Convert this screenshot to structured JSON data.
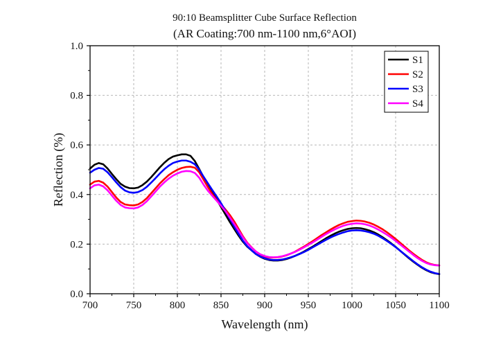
{
  "chart_data": {
    "type": "line",
    "title": "90:10 Beamsplitter Cube Surface Reflection",
    "subtitle": "(AR Coating:700 nm-1100 nm,6°AOI)",
    "xlabel": "Wavelength (nm)",
    "ylabel": "Reflection (%)",
    "xlim": [
      700,
      1100
    ],
    "ylim": [
      0.0,
      1.0
    ],
    "xticks": [
      "700",
      "750",
      "800",
      "850",
      "900",
      "950",
      "1000",
      "1050",
      "1100"
    ],
    "yticks": [
      "0.0",
      "0.2",
      "0.4",
      "0.6",
      "0.8",
      "1.0"
    ],
    "grid": true,
    "legend_position": "top-right",
    "series": [
      {
        "name": "S1",
        "color": "#000000",
        "x": [
          700,
          705,
          710,
          715,
          720,
          725,
          730,
          735,
          740,
          745,
          750,
          755,
          760,
          765,
          770,
          775,
          780,
          785,
          790,
          795,
          800,
          805,
          810,
          815,
          820,
          825,
          830,
          835,
          840,
          845,
          850,
          855,
          860,
          865,
          870,
          875,
          880,
          885,
          890,
          895,
          900,
          905,
          910,
          915,
          920,
          925,
          930,
          935,
          940,
          945,
          950,
          955,
          960,
          965,
          970,
          975,
          980,
          985,
          990,
          995,
          1000,
          1005,
          1010,
          1015,
          1020,
          1025,
          1030,
          1035,
          1040,
          1045,
          1050,
          1055,
          1060,
          1065,
          1070,
          1075,
          1080,
          1085,
          1090,
          1095,
          1100
        ],
        "values": [
          0.505,
          0.52,
          0.527,
          0.522,
          0.505,
          0.483,
          0.462,
          0.443,
          0.432,
          0.426,
          0.425,
          0.428,
          0.438,
          0.452,
          0.47,
          0.49,
          0.51,
          0.528,
          0.543,
          0.553,
          0.558,
          0.562,
          0.562,
          0.556,
          0.535,
          0.503,
          0.47,
          0.438,
          0.41,
          0.38,
          0.35,
          0.32,
          0.29,
          0.262,
          0.235,
          0.21,
          0.19,
          0.175,
          0.16,
          0.149,
          0.141,
          0.136,
          0.134,
          0.134,
          0.136,
          0.14,
          0.146,
          0.153,
          0.161,
          0.17,
          0.18,
          0.19,
          0.201,
          0.212,
          0.223,
          0.233,
          0.242,
          0.25,
          0.256,
          0.261,
          0.264,
          0.265,
          0.264,
          0.26,
          0.255,
          0.248,
          0.239,
          0.228,
          0.216,
          0.203,
          0.189,
          0.174,
          0.159,
          0.144,
          0.13,
          0.117,
          0.105,
          0.095,
          0.087,
          0.082,
          0.079
        ]
      },
      {
        "name": "S2",
        "color": "#ff0000",
        "x": [
          700,
          705,
          710,
          715,
          720,
          725,
          730,
          735,
          740,
          745,
          750,
          755,
          760,
          765,
          770,
          775,
          780,
          785,
          790,
          795,
          800,
          805,
          810,
          815,
          820,
          825,
          830,
          835,
          840,
          845,
          850,
          855,
          860,
          865,
          870,
          875,
          880,
          885,
          890,
          895,
          900,
          905,
          910,
          915,
          920,
          925,
          930,
          935,
          940,
          945,
          950,
          955,
          960,
          965,
          970,
          975,
          980,
          985,
          990,
          995,
          1000,
          1005,
          1010,
          1015,
          1020,
          1025,
          1030,
          1035,
          1040,
          1045,
          1050,
          1055,
          1060,
          1065,
          1070,
          1075,
          1080,
          1085,
          1090,
          1095,
          1100
        ],
        "values": [
          0.44,
          0.452,
          0.455,
          0.448,
          0.432,
          0.41,
          0.388,
          0.37,
          0.36,
          0.357,
          0.356,
          0.36,
          0.37,
          0.385,
          0.405,
          0.425,
          0.445,
          0.462,
          0.478,
          0.49,
          0.5,
          0.507,
          0.511,
          0.512,
          0.508,
          0.49,
          0.46,
          0.43,
          0.402,
          0.378,
          0.36,
          0.34,
          0.318,
          0.292,
          0.262,
          0.232,
          0.206,
          0.187,
          0.17,
          0.158,
          0.15,
          0.146,
          0.146,
          0.147,
          0.15,
          0.155,
          0.162,
          0.17,
          0.18,
          0.19,
          0.201,
          0.212,
          0.224,
          0.236,
          0.247,
          0.258,
          0.268,
          0.277,
          0.284,
          0.29,
          0.293,
          0.295,
          0.294,
          0.291,
          0.286,
          0.279,
          0.27,
          0.26,
          0.248,
          0.235,
          0.221,
          0.206,
          0.191,
          0.176,
          0.162,
          0.149,
          0.137,
          0.127,
          0.12,
          0.116,
          0.114
        ]
      },
      {
        "name": "S3",
        "color": "#0000ff",
        "x": [
          700,
          705,
          710,
          715,
          720,
          725,
          730,
          735,
          740,
          745,
          750,
          755,
          760,
          765,
          770,
          775,
          780,
          785,
          790,
          795,
          800,
          805,
          810,
          815,
          820,
          825,
          830,
          835,
          840,
          845,
          850,
          855,
          860,
          865,
          870,
          875,
          880,
          885,
          890,
          895,
          900,
          905,
          910,
          915,
          920,
          925,
          930,
          935,
          940,
          945,
          950,
          955,
          960,
          965,
          970,
          975,
          980,
          985,
          990,
          995,
          1000,
          1005,
          1010,
          1015,
          1020,
          1025,
          1030,
          1035,
          1040,
          1045,
          1050,
          1055,
          1060,
          1065,
          1070,
          1075,
          1080,
          1085,
          1090,
          1095,
          1100
        ],
        "values": [
          0.488,
          0.5,
          0.507,
          0.504,
          0.49,
          0.47,
          0.449,
          0.43,
          0.416,
          0.409,
          0.407,
          0.41,
          0.418,
          0.431,
          0.448,
          0.466,
          0.485,
          0.502,
          0.516,
          0.527,
          0.533,
          0.537,
          0.537,
          0.532,
          0.522,
          0.5,
          0.472,
          0.445,
          0.418,
          0.392,
          0.365,
          0.335,
          0.303,
          0.272,
          0.242,
          0.214,
          0.192,
          0.175,
          0.16,
          0.15,
          0.143,
          0.138,
          0.136,
          0.136,
          0.138,
          0.142,
          0.147,
          0.153,
          0.16,
          0.168,
          0.177,
          0.187,
          0.197,
          0.207,
          0.217,
          0.226,
          0.234,
          0.241,
          0.247,
          0.252,
          0.255,
          0.256,
          0.255,
          0.252,
          0.248,
          0.242,
          0.234,
          0.224,
          0.213,
          0.201,
          0.188,
          0.174,
          0.16,
          0.146,
          0.132,
          0.119,
          0.107,
          0.097,
          0.089,
          0.083,
          0.08
        ]
      },
      {
        "name": "S4",
        "color": "#ff00ff",
        "x": [
          700,
          705,
          710,
          715,
          720,
          725,
          730,
          735,
          740,
          745,
          750,
          755,
          760,
          765,
          770,
          775,
          780,
          785,
          790,
          795,
          800,
          805,
          810,
          815,
          820,
          825,
          830,
          835,
          840,
          845,
          850,
          855,
          860,
          865,
          870,
          875,
          880,
          885,
          890,
          895,
          900,
          905,
          910,
          915,
          920,
          925,
          930,
          935,
          940,
          945,
          950,
          955,
          960,
          965,
          970,
          975,
          980,
          985,
          990,
          995,
          1000,
          1005,
          1010,
          1015,
          1020,
          1025,
          1030,
          1035,
          1040,
          1045,
          1050,
          1055,
          1060,
          1065,
          1070,
          1075,
          1080,
          1085,
          1090,
          1095,
          1100
        ],
        "values": [
          0.425,
          0.437,
          0.44,
          0.433,
          0.417,
          0.396,
          0.375,
          0.358,
          0.348,
          0.345,
          0.344,
          0.348,
          0.358,
          0.373,
          0.392,
          0.412,
          0.432,
          0.449,
          0.464,
          0.476,
          0.485,
          0.492,
          0.495,
          0.494,
          0.487,
          0.468,
          0.44,
          0.415,
          0.395,
          0.375,
          0.355,
          0.333,
          0.308,
          0.282,
          0.255,
          0.228,
          0.204,
          0.186,
          0.17,
          0.159,
          0.152,
          0.148,
          0.147,
          0.148,
          0.151,
          0.156,
          0.162,
          0.169,
          0.178,
          0.187,
          0.197,
          0.207,
          0.218,
          0.229,
          0.24,
          0.25,
          0.259,
          0.267,
          0.274,
          0.279,
          0.282,
          0.284,
          0.283,
          0.28,
          0.275,
          0.268,
          0.259,
          0.249,
          0.238,
          0.226,
          0.213,
          0.199,
          0.185,
          0.171,
          0.157,
          0.144,
          0.133,
          0.124,
          0.118,
          0.115,
          0.114
        ]
      }
    ]
  }
}
